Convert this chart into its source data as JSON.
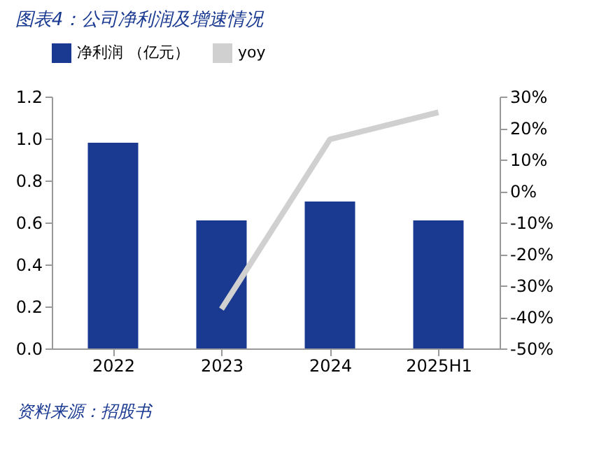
{
  "chart_data": {
    "type": "bar",
    "title": "图表4：公司净利润及增速情况",
    "categories": [
      "2022",
      "2023",
      "2024",
      "2025H1"
    ],
    "series": [
      {
        "name": "净利润 （亿元）",
        "color": "#1a3a92",
        "values": [
          0.98,
          0.61,
          0.7,
          0.61
        ]
      },
      {
        "name": "yoy",
        "type": "line",
        "axis": "y2",
        "color": "#d0d0d0",
        "values": [
          null,
          -37.5,
          16.4,
          25
        ],
        "marker": "none",
        "line_style": "solid"
      }
    ],
    "ylim": [
      0,
      1.2
    ],
    "yticks": [
      {
        "value": 0,
        "label": "0.0"
      },
      0.2,
      0.4,
      0.6,
      0.8,
      {
        "value": 1,
        "label": "1.0"
      },
      1.2
    ],
    "y2lim": [
      -50,
      30
    ],
    "y2ticks": [
      {
        "value": -50,
        "label": "-50%"
      },
      {
        "value": -40,
        "label": "-40%"
      },
      {
        "value": -30,
        "label": "-30%"
      },
      {
        "value": -20,
        "label": "-20%"
      },
      {
        "value": -10,
        "label": "-10%"
      },
      {
        "value": 0,
        "label": "0%"
      },
      {
        "value": 10,
        "label": "10%"
      },
      {
        "value": 20,
        "label": "20%"
      },
      {
        "value": 30,
        "label": "30%"
      }
    ],
    "grid": false,
    "legend": "top",
    "annotations": [
      "资料来源：招股书"
    ]
  }
}
